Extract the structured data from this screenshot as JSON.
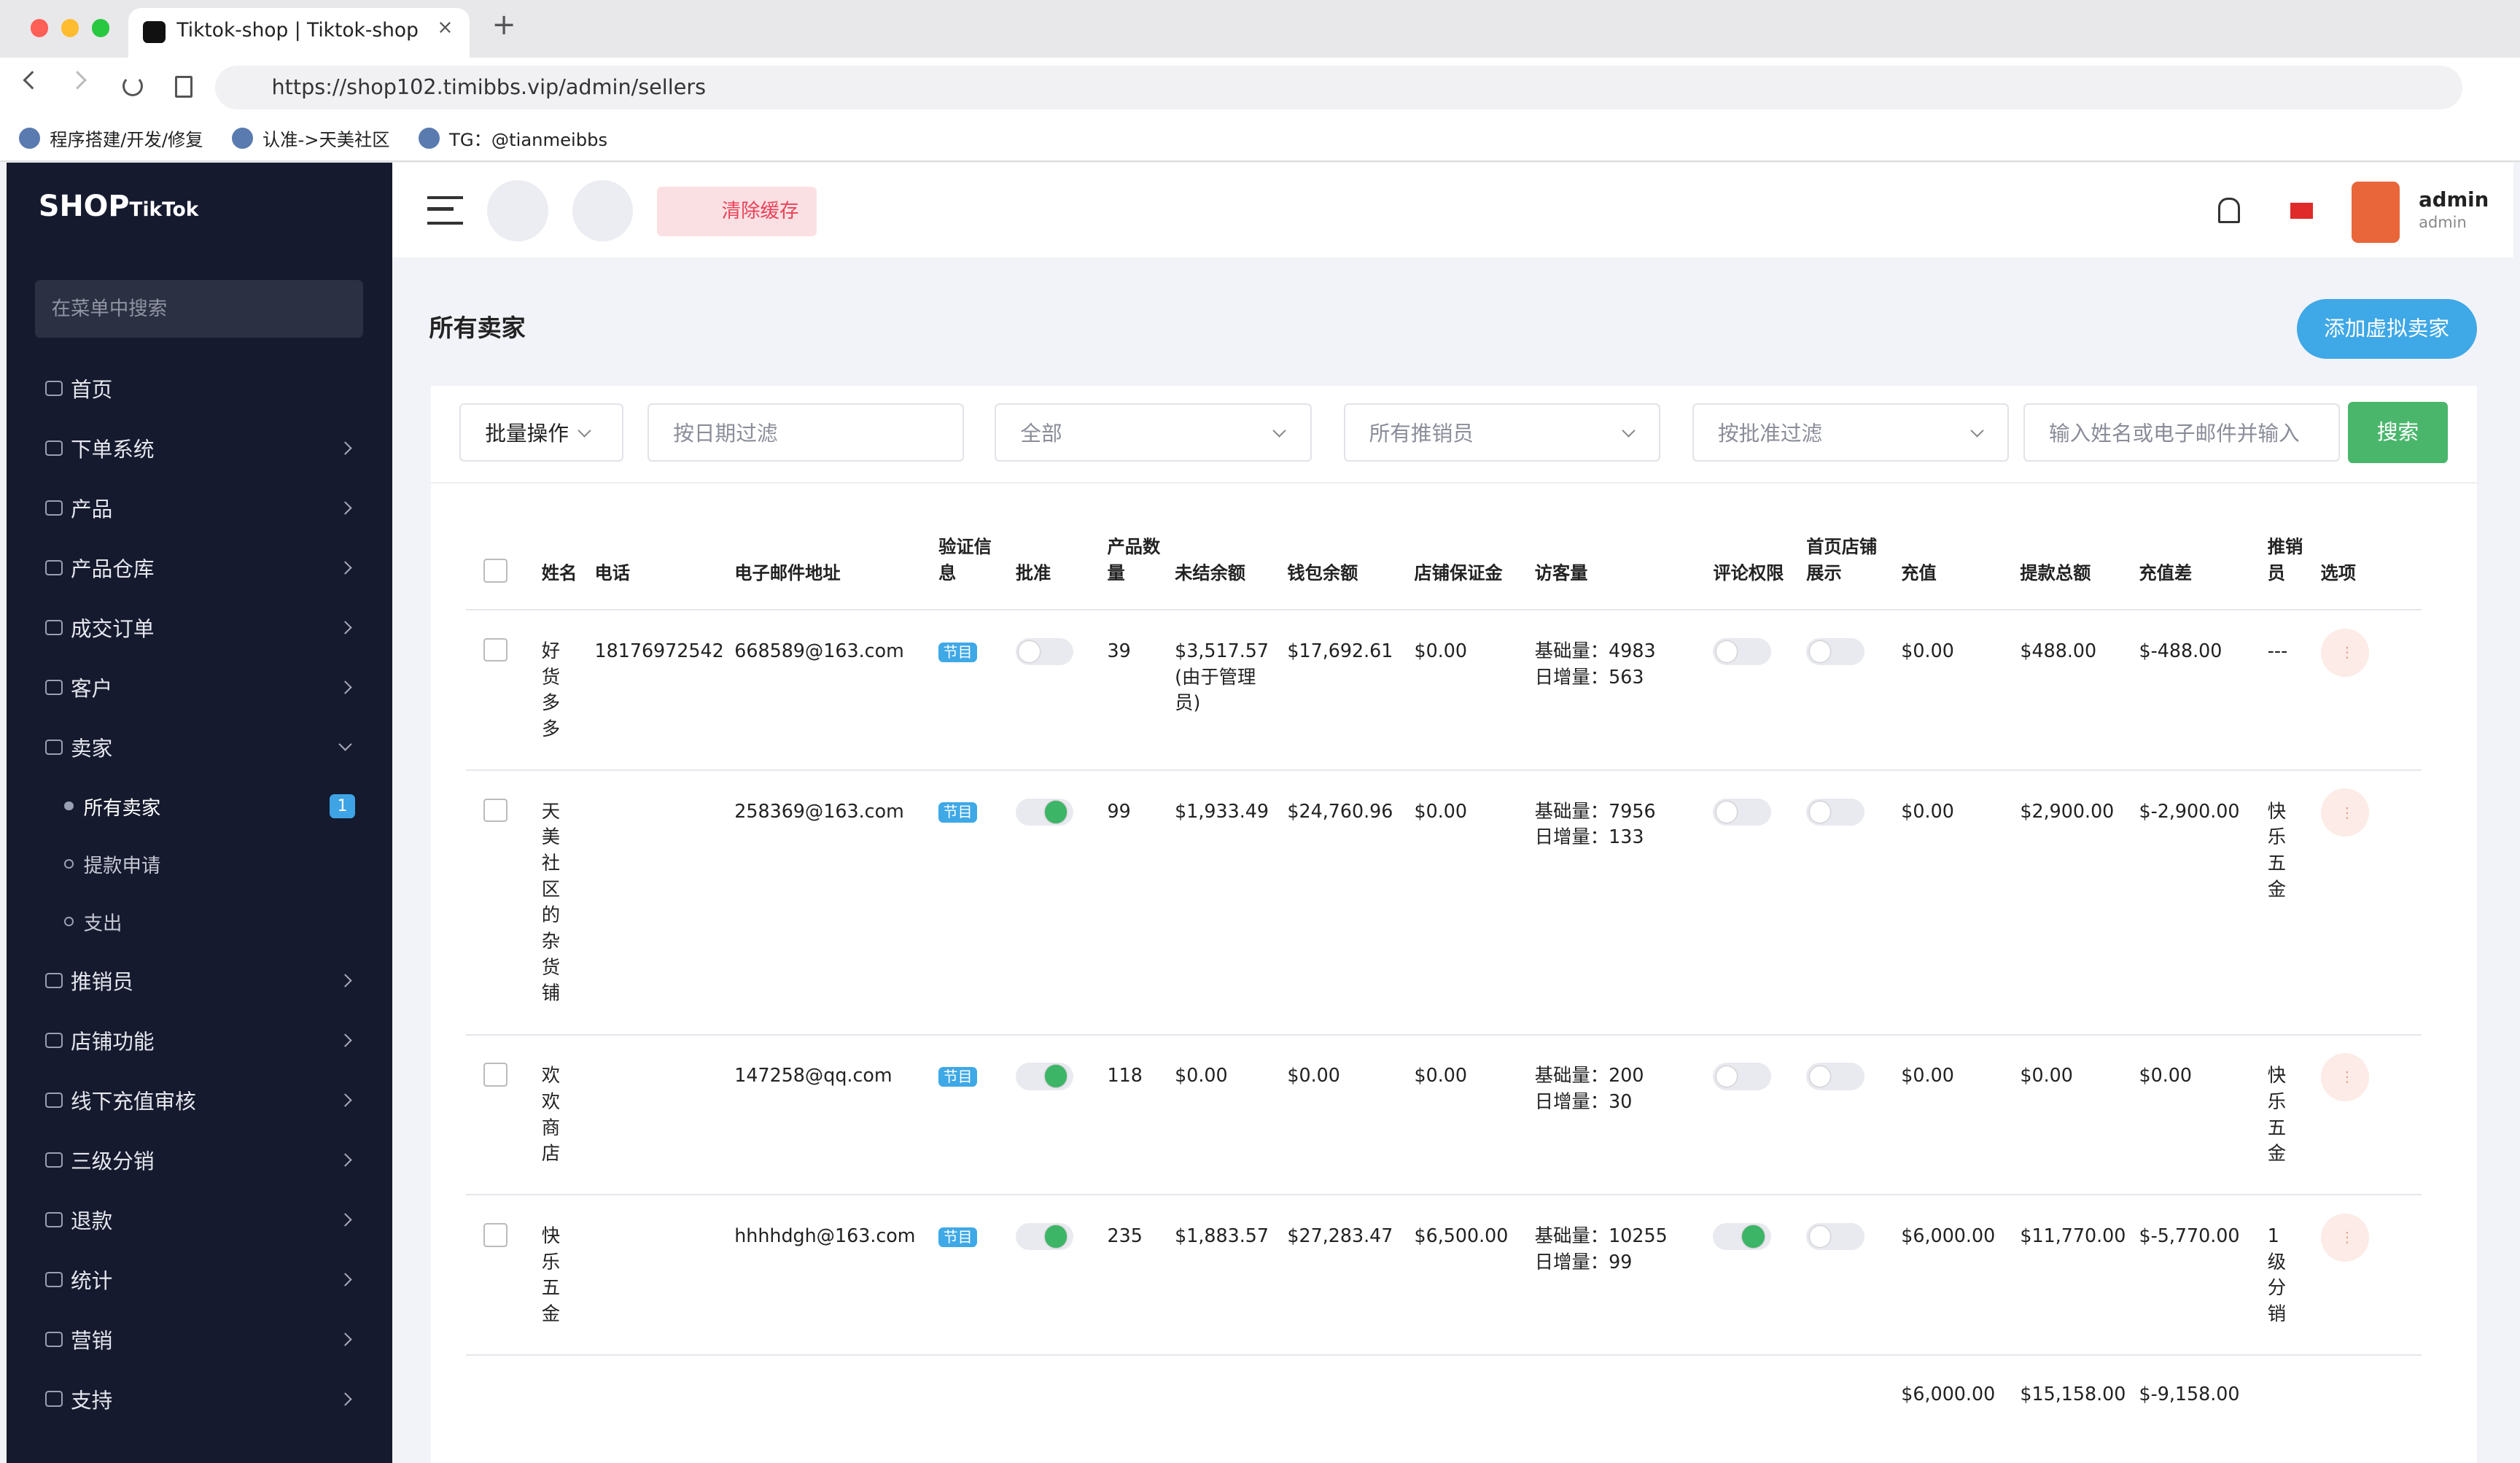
{
  "browser": {
    "tab_title": "Tiktok-shop | Tiktok-shop",
    "url": "https://shop102.timibbs.vip/admin/sellers",
    "bookmarks": [
      "程序搭建/开发/修复",
      "认准->天美社区",
      "TG：@tianmeibbs"
    ]
  },
  "sidebar": {
    "logo": "SHOP",
    "logo_sub": "TikTok",
    "search_placeholder": "在菜单中搜索",
    "menu": [
      {
        "label": "首页",
        "has_submenu": false
      },
      {
        "label": "下单系统",
        "has_submenu": true
      },
      {
        "label": "产品",
        "has_submenu": true
      },
      {
        "label": "产品仓库",
        "has_submenu": true
      },
      {
        "label": "成交订单",
        "has_submenu": true
      },
      {
        "label": "客户",
        "has_submenu": true
      },
      {
        "label": "卖家",
        "has_submenu": true,
        "expanded": true,
        "children": [
          {
            "label": "所有卖家",
            "badge": "1",
            "active": true
          },
          {
            "label": "提款申请"
          },
          {
            "label": "支出"
          }
        ]
      },
      {
        "label": "推销员",
        "has_submenu": true
      },
      {
        "label": "店铺功能",
        "has_submenu": true
      },
      {
        "label": "线下充值审核",
        "has_submenu": true
      },
      {
        "label": "三级分销",
        "has_submenu": true
      },
      {
        "label": "退款",
        "has_submenu": true
      },
      {
        "label": "统计",
        "has_submenu": true
      },
      {
        "label": "营销",
        "has_submenu": true
      },
      {
        "label": "支持",
        "has_submenu": true
      }
    ]
  },
  "header": {
    "clear_cache": "清除缓存",
    "user_name": "admin",
    "user_role": "admin"
  },
  "page": {
    "title": "所有卖家",
    "add_button": "添加虚拟卖家"
  },
  "filters": {
    "bulk": "批量操作",
    "date_placeholder": "按日期过滤",
    "status": "全部",
    "salesman": "所有推销员",
    "approval": "按批准过滤",
    "search_placeholder": "输入姓名或电子邮件并输入",
    "search_button": "搜索"
  },
  "table": {
    "columns": [
      "姓名",
      "电话",
      "电子邮件地址",
      "验证信息",
      "批准",
      "产品数量",
      "未结余额",
      "钱包余额",
      "店铺保证金",
      "访客量",
      "评论权限",
      "首页店铺展示",
      "充值",
      "提款总额",
      "充值差",
      "推销员",
      "选项"
    ],
    "rows": [
      {
        "name": "好货多多",
        "phone": "18176972542",
        "email": "668589@163.com",
        "verify": "节目",
        "approved": false,
        "products": 39,
        "pending": "$3,517.57",
        "pending_note": "(由于管理员)",
        "wallet": "$17,692.61",
        "deposit": "$0.00",
        "visitors": [
          "基础量：4983",
          "日增量：563"
        ],
        "comment": false,
        "homepage": false,
        "recharge": "$0.00",
        "withdraw": "$488.00",
        "diff": "$-488.00",
        "salesman": "---"
      },
      {
        "name": "天美社区的杂货铺",
        "phone": null,
        "email": "258369@163.com",
        "verify": "节目",
        "approved": true,
        "products": 99,
        "pending": "$1,933.49",
        "pending_note": null,
        "wallet": "$24,760.96",
        "deposit": "$0.00",
        "visitors": [
          "基础量：7956",
          "日增量：133"
        ],
        "comment": false,
        "homepage": false,
        "recharge": "$0.00",
        "withdraw": "$2,900.00",
        "diff": "$-2,900.00",
        "salesman": "快乐五金"
      },
      {
        "name": "欢欢商店",
        "phone": null,
        "email": "147258@qq.com",
        "verify": "节目",
        "approved": true,
        "products": 118,
        "pending": "$0.00",
        "pending_note": null,
        "wallet": "$0.00",
        "deposit": "$0.00",
        "visitors": [
          "基础量：200",
          "日增量：30"
        ],
        "comment": false,
        "homepage": false,
        "recharge": "$0.00",
        "withdraw": "$0.00",
        "diff": "$0.00",
        "salesman": "快乐五金"
      },
      {
        "name": "快乐五金",
        "phone": null,
        "email": "hhhhdgh@163.com",
        "verify": "节目",
        "approved": true,
        "products": 235,
        "pending": "$1,883.57",
        "pending_note": null,
        "wallet": "$27,283.47",
        "deposit": "$6,500.00",
        "visitors": [
          "基础量：10255",
          "日增量：99"
        ],
        "comment": true,
        "homepage": false,
        "recharge": "$6,000.00",
        "withdraw": "$11,770.00",
        "diff": "$-5,770.00",
        "salesman": "1级分销"
      }
    ],
    "totals": {
      "recharge": "$6,000.00",
      "withdraw": "$15,158.00",
      "diff": "$-9,158.00"
    }
  }
}
